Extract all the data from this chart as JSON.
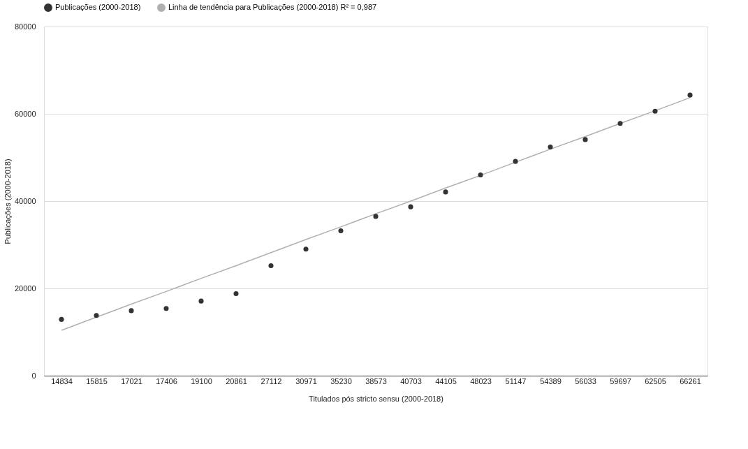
{
  "chart_data": {
    "type": "scatter",
    "xlabel": "Titulados pós stricto sensu (2000-2018)",
    "ylabel": "Publicações (2000-2018)",
    "categories": [
      "14834",
      "15815",
      "17021",
      "17406",
      "19100",
      "20861",
      "27112",
      "30971",
      "35230",
      "38573",
      "40703",
      "44105",
      "48023",
      "51147",
      "54389",
      "56033",
      "59697",
      "62505",
      "66261"
    ],
    "series": [
      {
        "name": "Publicações (2000-2018)",
        "color": "#333333",
        "values": [
          12900,
          13800,
          14900,
          15400,
          17100,
          18800,
          25200,
          29000,
          33200,
          36500,
          38700,
          42100,
          46000,
          49100,
          52400,
          54100,
          57800,
          60600,
          64300
        ]
      },
      {
        "name": "Linha de tendência para Publicações (2000-2018) R² = 0,987",
        "type": "line",
        "marker": "none",
        "color": "#b0b0b0",
        "values": [
          10400,
          13400,
          16400,
          19300,
          22300,
          25200,
          28200,
          31200,
          34100,
          37100,
          40000,
          43000,
          45900,
          48900,
          51900,
          54800,
          57800,
          60700,
          63700
        ]
      }
    ],
    "ylim": [
      0,
      80000
    ],
    "yticks": [
      0,
      20000,
      40000,
      60000,
      80000
    ],
    "grid": "y",
    "legend": "top left",
    "marker": "circle",
    "line_style": "solid"
  }
}
